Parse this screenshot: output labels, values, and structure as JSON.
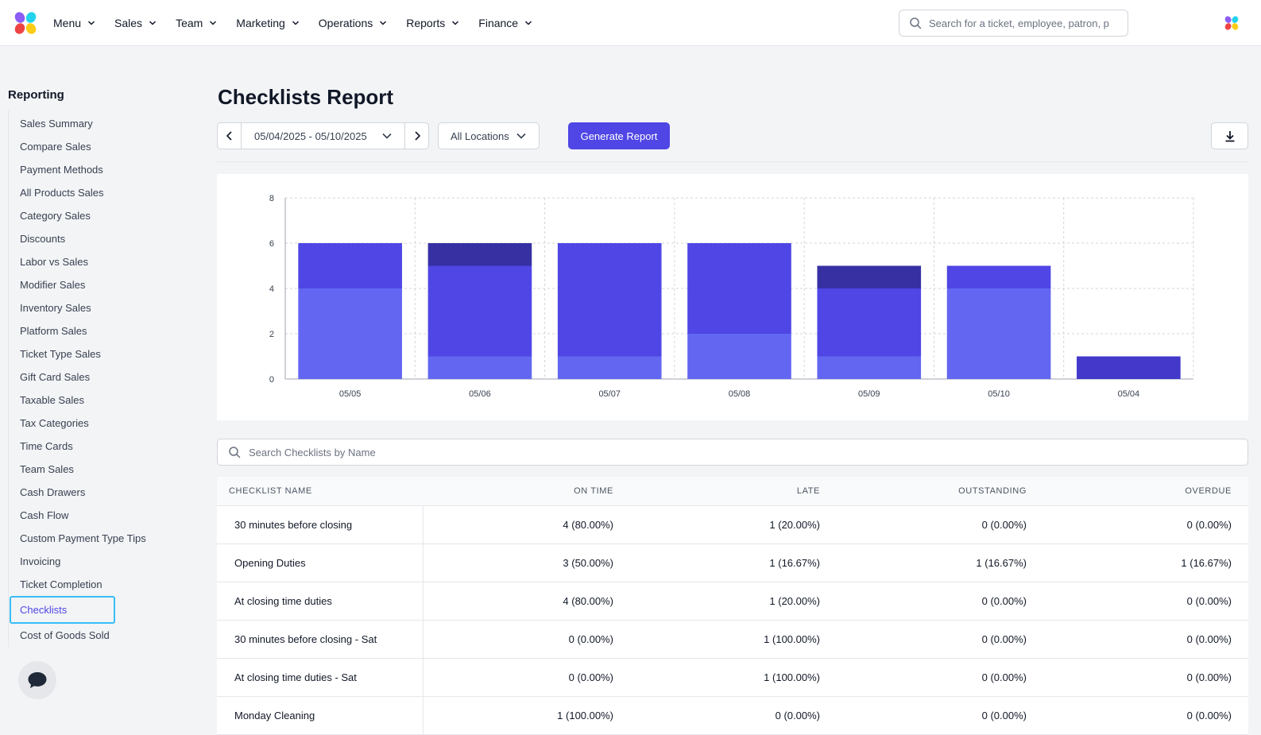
{
  "nav": {
    "items": [
      {
        "label": "Menu"
      },
      {
        "label": "Sales"
      },
      {
        "label": "Team"
      },
      {
        "label": "Marketing"
      },
      {
        "label": "Operations"
      },
      {
        "label": "Reports"
      },
      {
        "label": "Finance"
      }
    ],
    "search_placeholder": "Search for a ticket, employee, patron, p"
  },
  "sidebar": {
    "title": "Reporting",
    "items": [
      "Sales Summary",
      "Compare Sales",
      "Payment Methods",
      "All Products Sales",
      "Category Sales",
      "Discounts",
      "Labor vs Sales",
      "Modifier Sales",
      "Inventory Sales",
      "Platform Sales",
      "Ticket Type Sales",
      "Gift Card Sales",
      "Taxable Sales",
      "Tax Categories",
      "Time Cards",
      "Team Sales",
      "Cash Drawers",
      "Cash Flow",
      "Custom Payment Type Tips",
      "Invoicing",
      "Ticket Completion",
      "Checklists",
      "Cost of Goods Sold"
    ],
    "active_item": "Checklists"
  },
  "page": {
    "title": "Checklists Report",
    "date_range": "05/04/2025 - 05/10/2025",
    "location": "All Locations",
    "generate_label": "Generate Report"
  },
  "colors": {
    "accent": "#4f46e5",
    "series": [
      "#6366f1",
      "#4f46e5",
      "#3730a3",
      "#4338ca"
    ]
  },
  "chart_data": {
    "type": "bar",
    "stacked": true,
    "categories": [
      "05/05",
      "05/06",
      "05/07",
      "05/08",
      "05/09",
      "05/10",
      "05/04"
    ],
    "ylim": [
      0,
      8
    ],
    "yticks": [
      0,
      2,
      4,
      6,
      8
    ],
    "grid": true,
    "series": [
      {
        "values": [
          4,
          1,
          1,
          2,
          1,
          4,
          0
        ],
        "color": "#6366f1"
      },
      {
        "values": [
          2,
          4,
          5,
          4,
          3,
          1,
          0
        ],
        "color": "#4f46e5"
      },
      {
        "values": [
          0,
          1,
          0,
          0,
          1,
          0,
          0
        ],
        "color": "#3730a3"
      },
      {
        "values": [
          0,
          0,
          0,
          0,
          0,
          0,
          1
        ],
        "color": "#4338ca"
      }
    ]
  },
  "checklists": {
    "search_placeholder": "Search Checklists by Name",
    "columns": [
      "CHECKLIST NAME",
      "ON TIME",
      "LATE",
      "OUTSTANDING",
      "OVERDUE"
    ],
    "rows": [
      [
        "30 minutes before closing",
        "4 (80.00%)",
        "1 (20.00%)",
        "0 (0.00%)",
        "0 (0.00%)"
      ],
      [
        "Opening Duties",
        "3 (50.00%)",
        "1 (16.67%)",
        "1 (16.67%)",
        "1 (16.67%)"
      ],
      [
        "At closing time duties",
        "4 (80.00%)",
        "1 (20.00%)",
        "0 (0.00%)",
        "0 (0.00%)"
      ],
      [
        "30 minutes before closing - Sat",
        "0 (0.00%)",
        "1 (100.00%)",
        "0 (0.00%)",
        "0 (0.00%)"
      ],
      [
        "At closing time duties - Sat",
        "0 (0.00%)",
        "1 (100.00%)",
        "0 (0.00%)",
        "0 (0.00%)"
      ],
      [
        "Monday Cleaning",
        "1 (100.00%)",
        "0 (0.00%)",
        "0 (0.00%)",
        "0 (0.00%)"
      ]
    ]
  }
}
